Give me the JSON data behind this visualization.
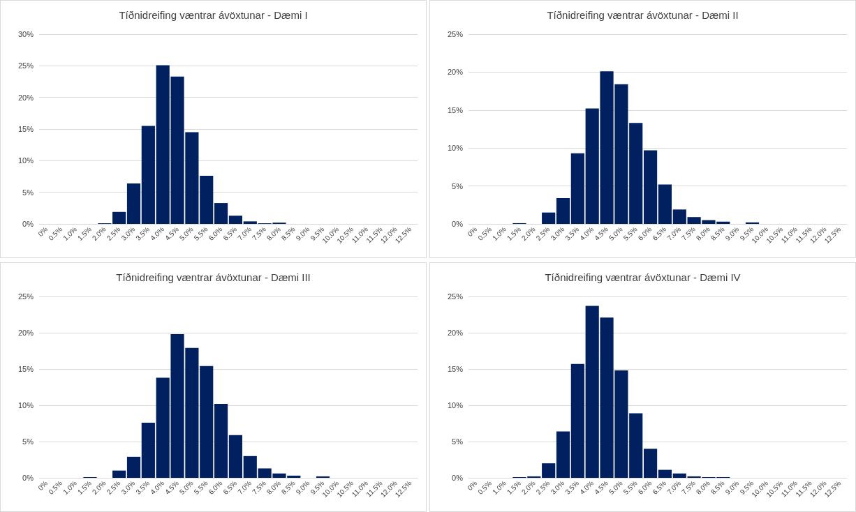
{
  "chart_data": [
    {
      "type": "bar",
      "title": "Tíðnidreifing væntrar ávöxtunar - Dæmi I",
      "categories": [
        "0%",
        "0.5%",
        "1.0%",
        "1.5%",
        "2.0%",
        "2.5%",
        "3.0%",
        "3.5%",
        "4.0%",
        "4.5%",
        "5.0%",
        "5.5%",
        "6.0%",
        "6.5%",
        "7.0%",
        "7.5%",
        "8.0%",
        "8.5%",
        "9.0%",
        "9.5%",
        "10.0%",
        "10.5%",
        "11.0%",
        "11.5%",
        "12.0%",
        "12.5%"
      ],
      "values": [
        0,
        0,
        0,
        0,
        0.1,
        1.9,
        6.4,
        15.5,
        25.1,
        23.3,
        14.5,
        7.6,
        3.3,
        1.3,
        0.4,
        0.1,
        0.2,
        0,
        0,
        0,
        0,
        0,
        0,
        0,
        0,
        0
      ],
      "color": "#002060",
      "ylim": [
        0,
        30
      ],
      "yticks": [
        {
          "value": 0,
          "label": "0%"
        },
        {
          "value": 5,
          "label": "5%"
        },
        {
          "value": 10,
          "label": "10%"
        },
        {
          "value": 15,
          "label": "15%"
        },
        {
          "value": 20,
          "label": "20%"
        },
        {
          "value": 25,
          "label": "25%"
        },
        {
          "value": 30,
          "label": "30%"
        }
      ],
      "grid": "y"
    },
    {
      "type": "bar",
      "title": "Tíðnidreifing væntrar ávöxtunar - Dæmi II",
      "categories": [
        "0%",
        "0.5%",
        "1.0%",
        "1.5%",
        "2.0%",
        "2.5%",
        "3.0%",
        "3.5%",
        "4.0%",
        "4.5%",
        "5.0%",
        "5.5%",
        "6.0%",
        "6.5%",
        "7.0%",
        "7.5%",
        "8.0%",
        "8.5%",
        "9.0%",
        "9.5%",
        "10.0%",
        "10.5%",
        "11.0%",
        "11.5%",
        "12.0%",
        "12.5%"
      ],
      "values": [
        0,
        0,
        0,
        0.1,
        0,
        1.5,
        3.4,
        9.3,
        15.2,
        20.1,
        18.4,
        13.3,
        9.7,
        5.2,
        1.9,
        0.9,
        0.5,
        0.3,
        0,
        0.2,
        0,
        0,
        0,
        0,
        0,
        0
      ],
      "color": "#002060",
      "ylim": [
        0,
        25
      ],
      "yticks": [
        {
          "value": 0,
          "label": "0%"
        },
        {
          "value": 5,
          "label": "5%"
        },
        {
          "value": 10,
          "label": "10%"
        },
        {
          "value": 15,
          "label": "15%"
        },
        {
          "value": 20,
          "label": "20%"
        },
        {
          "value": 25,
          "label": "25%"
        }
      ],
      "grid": "y"
    },
    {
      "type": "bar",
      "title": "Tíðnidreifing væntrar ávöxtunar - Dæmi III",
      "categories": [
        "0%",
        "0.5%",
        "1.0%",
        "1.5%",
        "2.0%",
        "2.5%",
        "3.0%",
        "3.5%",
        "4.0%",
        "4.5%",
        "5.0%",
        "5.5%",
        "6.0%",
        "6.5%",
        "7.0%",
        "7.5%",
        "8.0%",
        "8.5%",
        "9.0%",
        "9.5%",
        "10.0%",
        "10.5%",
        "11.0%",
        "11.5%",
        "12.0%",
        "12.5%"
      ],
      "values": [
        0,
        0,
        0,
        0.1,
        0,
        1.0,
        2.9,
        7.6,
        13.8,
        19.8,
        17.9,
        15.4,
        10.2,
        5.9,
        3.0,
        1.3,
        0.6,
        0.3,
        0,
        0.2,
        0,
        0,
        0,
        0,
        0,
        0
      ],
      "color": "#002060",
      "ylim": [
        0,
        25
      ],
      "yticks": [
        {
          "value": 0,
          "label": "0%"
        },
        {
          "value": 5,
          "label": "5%"
        },
        {
          "value": 10,
          "label": "10%"
        },
        {
          "value": 15,
          "label": "15%"
        },
        {
          "value": 20,
          "label": "20%"
        },
        {
          "value": 25,
          "label": "25%"
        }
      ],
      "grid": "y"
    },
    {
      "type": "bar",
      "title": "Tíðnidreifing væntrar ávöxtunar - Dæmi IV",
      "categories": [
        "0%",
        "0.5%",
        "1.0%",
        "1.5%",
        "2.0%",
        "2.5%",
        "3.0%",
        "3.5%",
        "4.0%",
        "4.5%",
        "5.0%",
        "5.5%",
        "6.0%",
        "6.5%",
        "7.0%",
        "7.5%",
        "8.0%",
        "8.5%",
        "9.0%",
        "9.5%",
        "10.0%",
        "10.5%",
        "11.0%",
        "11.5%",
        "12.0%",
        "12.5%"
      ],
      "values": [
        0,
        0,
        0,
        0.1,
        0.2,
        2.0,
        6.4,
        15.7,
        23.7,
        22.1,
        14.8,
        8.9,
        4.0,
        1.1,
        0.6,
        0.2,
        0.1,
        0.1,
        0,
        0,
        0,
        0,
        0,
        0,
        0,
        0
      ],
      "color": "#002060",
      "ylim": [
        0,
        25
      ],
      "yticks": [
        {
          "value": 0,
          "label": "0%"
        },
        {
          "value": 5,
          "label": "5%"
        },
        {
          "value": 10,
          "label": "10%"
        },
        {
          "value": 15,
          "label": "15%"
        },
        {
          "value": 20,
          "label": "20%"
        },
        {
          "value": 25,
          "label": "25%"
        }
      ],
      "grid": "y"
    }
  ]
}
